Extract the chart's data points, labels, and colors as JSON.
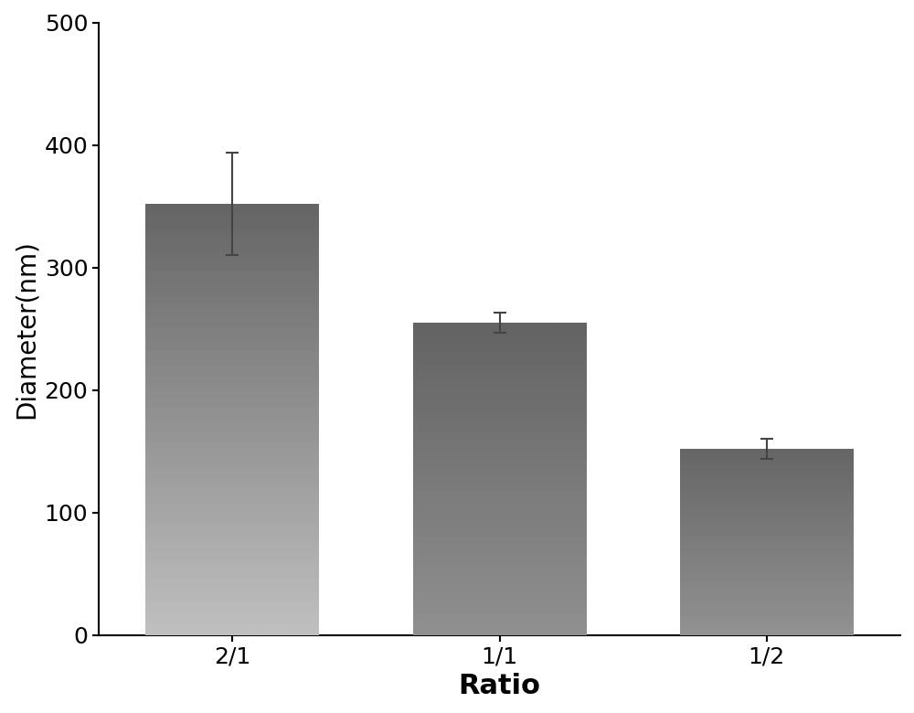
{
  "categories": [
    "2/1",
    "1/1",
    "1/2"
  ],
  "values": [
    352,
    255,
    152
  ],
  "errors": [
    42,
    8,
    8
  ],
  "bar_colors_top": [
    "#656565",
    "#636363",
    "#666666"
  ],
  "bar_colors_bottom": [
    "#c0c0c0",
    "#909090",
    "#929292"
  ],
  "ylabel": "Diameter(nm)",
  "xlabel": "Ratio",
  "ylim": [
    0,
    500
  ],
  "yticks": [
    0,
    100,
    200,
    300,
    400,
    500
  ],
  "background_color": "#ffffff",
  "ylabel_fontsize": 20,
  "xlabel_fontsize": 22,
  "tick_fontsize": 18,
  "bar_width": 0.65,
  "error_capsize": 5,
  "error_color": "#444444",
  "error_linewidth": 1.5
}
